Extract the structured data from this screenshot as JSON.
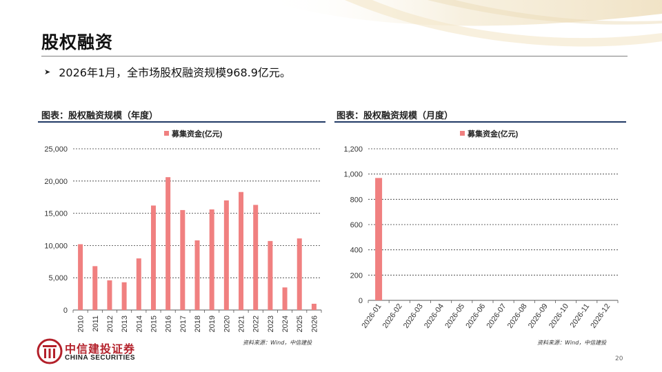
{
  "slide": {
    "title": "股权融资",
    "bullet": "2026年1月，全市场股权融资规模968.9亿元。",
    "page_number": "20"
  },
  "colors": {
    "bar": "#f08080",
    "rule": "#1f3864",
    "logo_red": "#b3202a"
  },
  "logo": {
    "cn": "中信建投证券",
    "en": "CHINA SECURITIES"
  },
  "charts": [
    {
      "caption": "图表：股权融资规模（年度）",
      "source": "资料来源：Wind，中信建投"
    },
    {
      "caption": "图表：股权融资规模（月度）",
      "source": "资料来源：Wind，中信建投"
    }
  ],
  "chart_data": [
    {
      "type": "bar",
      "legend": "募集资金(亿元)",
      "legend_position": "top-center",
      "grid": true,
      "categories": [
        "2010",
        "2011",
        "2012",
        "2013",
        "2014",
        "2015",
        "2016",
        "2017",
        "2018",
        "2019",
        "2020",
        "2021",
        "2022",
        "2023",
        "2024",
        "2025",
        "2026"
      ],
      "values": [
        10200,
        6800,
        4600,
        4300,
        8000,
        16200,
        20600,
        15500,
        10800,
        15600,
        17000,
        18300,
        16300,
        10700,
        3500,
        11100,
        968.9
      ],
      "ylim": [
        0,
        25000
      ],
      "yticks": [
        0,
        5000,
        10000,
        15000,
        20000,
        25000
      ],
      "ytick_labels": [
        "0",
        "5,000",
        "10,000",
        "15,000",
        "20,000",
        "25,000"
      ]
    },
    {
      "type": "bar",
      "legend": "募集资金(亿元)",
      "legend_position": "top-center",
      "grid": true,
      "categories": [
        "2026-01",
        "2026-02",
        "2026-03",
        "2026-04",
        "2026-05",
        "2026-06",
        "2026-07",
        "2026-08",
        "2026-09",
        "2026-10",
        "2026-11",
        "2026-12"
      ],
      "values": [
        968.9,
        null,
        null,
        null,
        null,
        null,
        null,
        null,
        null,
        null,
        null,
        null
      ],
      "ylim": [
        0,
        1200
      ],
      "yticks": [
        0,
        200,
        400,
        600,
        800,
        1000,
        1200
      ],
      "ytick_labels": [
        "0",
        "200",
        "400",
        "600",
        "800",
        "1,000",
        "1,200"
      ]
    }
  ]
}
